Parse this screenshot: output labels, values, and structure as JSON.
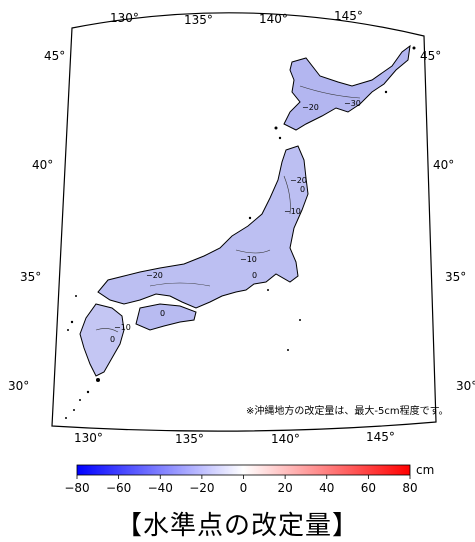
{
  "map": {
    "lon_top_labels": [
      "130°",
      "135°",
      "140°",
      "145°"
    ],
    "lon_bottom_labels": [
      "130°",
      "135°",
      "140°",
      "145°"
    ],
    "lat_left_labels": [
      "45°",
      "40°",
      "35°",
      "30°"
    ],
    "lat_right_labels": [
      "45°",
      "40°",
      "35°",
      "30°"
    ],
    "contour_labels": [
      "−20",
      "−30",
      "−20",
      "0",
      "−10",
      "−10",
      "0",
      "−20",
      "0",
      "0",
      "−10"
    ],
    "note": "※沖縄地方の改定量は、最大-5cm程度です。"
  },
  "colorbar": {
    "unit": "cm",
    "ticks": [
      "−80",
      "−60",
      "−40",
      "−20",
      "0",
      "20",
      "40",
      "60",
      "80"
    ],
    "values": [
      -80,
      -60,
      -40,
      -20,
      0,
      20,
      40,
      60,
      80
    ],
    "color_min": "#0000ff",
    "color_mid": "#ffffff",
    "color_max": "#ff0000"
  },
  "title": "【水準点の改定量】"
}
